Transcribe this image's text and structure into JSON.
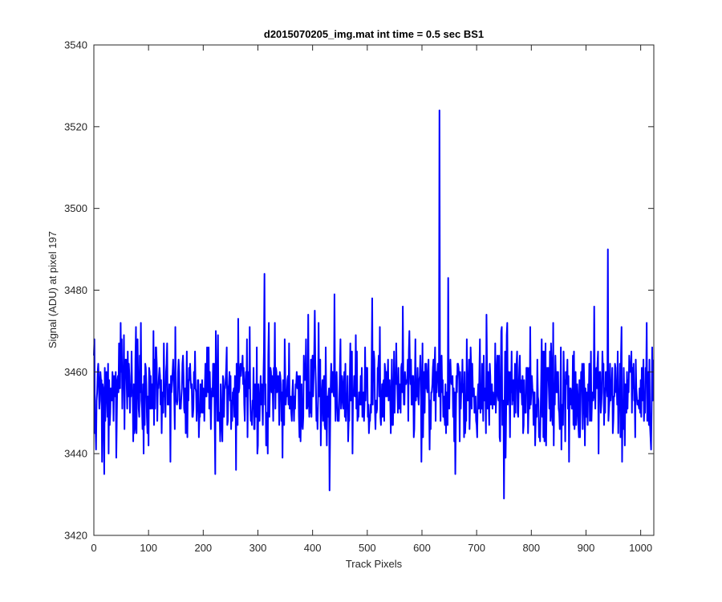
{
  "chart_data": {
    "type": "line",
    "title": "d2015070205_img.mat int time = 0.5 sec   BS1",
    "xlabel": "Track Pixels",
    "ylabel": "Signal (ADU) at pixel 197",
    "xlim": [
      0,
      1024
    ],
    "ylim": [
      3420,
      3540
    ],
    "xticks": [
      0,
      100,
      200,
      300,
      400,
      500,
      600,
      700,
      800,
      900,
      1000
    ],
    "yticks": [
      3420,
      3440,
      3460,
      3480,
      3500,
      3520,
      3540
    ],
    "grid": false,
    "line_color": "#0000ff",
    "baseline": 3455,
    "notable_points": [
      {
        "x": 0,
        "y": 3464
      },
      {
        "x": 4,
        "y": 3441
      },
      {
        "x": 19,
        "y": 3435
      },
      {
        "x": 41,
        "y": 3439
      },
      {
        "x": 77,
        "y": 3471
      },
      {
        "x": 91,
        "y": 3440
      },
      {
        "x": 140,
        "y": 3438
      },
      {
        "x": 149,
        "y": 3471
      },
      {
        "x": 222,
        "y": 3435
      },
      {
        "x": 260,
        "y": 3436
      },
      {
        "x": 264,
        "y": 3473
      },
      {
        "x": 312,
        "y": 3484
      },
      {
        "x": 318,
        "y": 3440
      },
      {
        "x": 331,
        "y": 3472
      },
      {
        "x": 392,
        "y": 3474
      },
      {
        "x": 404,
        "y": 3475
      },
      {
        "x": 409,
        "y": 3446
      },
      {
        "x": 431,
        "y": 3431
      },
      {
        "x": 440,
        "y": 3479
      },
      {
        "x": 473,
        "y": 3440
      },
      {
        "x": 509,
        "y": 3478
      },
      {
        "x": 565,
        "y": 3476
      },
      {
        "x": 599,
        "y": 3438
      },
      {
        "x": 614,
        "y": 3441
      },
      {
        "x": 632,
        "y": 3524
      },
      {
        "x": 648,
        "y": 3483
      },
      {
        "x": 661,
        "y": 3435
      },
      {
        "x": 682,
        "y": 3468
      },
      {
        "x": 718,
        "y": 3474
      },
      {
        "x": 750,
        "y": 3429
      },
      {
        "x": 756,
        "y": 3472
      },
      {
        "x": 798,
        "y": 3471
      },
      {
        "x": 840,
        "y": 3472
      },
      {
        "x": 869,
        "y": 3438
      },
      {
        "x": 915,
        "y": 3476
      },
      {
        "x": 940,
        "y": 3490
      },
      {
        "x": 966,
        "y": 3438
      },
      {
        "x": 1011,
        "y": 3472
      },
      {
        "x": 1019,
        "y": 3441
      },
      {
        "x": 1023,
        "y": 3463
      }
    ]
  }
}
